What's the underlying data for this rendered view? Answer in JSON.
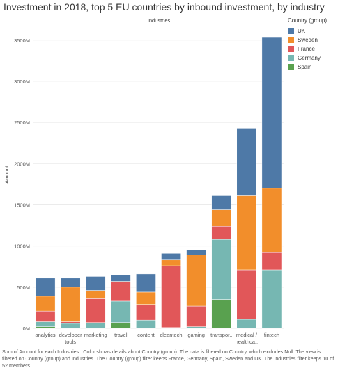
{
  "chart_data": {
    "type": "bar",
    "stacked": true,
    "title": "Investment in 2018, top 5 EU countries by inbound investment, by industry",
    "column_header": "Industries",
    "ylabel": "Amount",
    "ylim": [
      0,
      3650
    ],
    "yticks": [
      0,
      500,
      1000,
      1500,
      2000,
      2500,
      3000,
      3500
    ],
    "ytick_labels": [
      "0M",
      "500M",
      "1000M",
      "1500M",
      "2000M",
      "2500M",
      "3000M",
      "3500M"
    ],
    "grid": true,
    "legend_title": "Country (group)",
    "legend_position": "top-right",
    "categories": [
      "analytics",
      "developer tools",
      "marketing",
      "travel",
      "content",
      "cleantech",
      "gaming",
      "transpor..",
      "medical / healthca..",
      "fintech"
    ],
    "category_lines": [
      [
        "analytics"
      ],
      [
        "developer",
        "tools"
      ],
      [
        "marketing"
      ],
      [
        "travel"
      ],
      [
        "content"
      ],
      [
        "cleantech"
      ],
      [
        "gaming"
      ],
      [
        "transpor.."
      ],
      [
        "medical /",
        "healthca.."
      ],
      [
        "fintech"
      ]
    ],
    "series": [
      {
        "name": "Spain",
        "color": "#59a14f",
        "values": [
          20,
          0,
          0,
          70,
          0,
          0,
          0,
          350,
          0,
          0
        ]
      },
      {
        "name": "Germany",
        "color": "#76b7b2",
        "values": [
          60,
          60,
          70,
          260,
          100,
          10,
          20,
          730,
          110,
          710
        ]
      },
      {
        "name": "France",
        "color": "#e15759",
        "values": [
          130,
          20,
          290,
          230,
          190,
          750,
          250,
          160,
          600,
          210
        ]
      },
      {
        "name": "Sweden",
        "color": "#f28e2b",
        "values": [
          180,
          420,
          100,
          10,
          150,
          70,
          620,
          200,
          900,
          780
        ]
      },
      {
        "name": "UK",
        "color": "#4e79a7",
        "values": [
          220,
          110,
          170,
          80,
          220,
          80,
          60,
          170,
          820,
          1840
        ]
      }
    ],
    "legend_order": [
      "UK",
      "Sweden",
      "France",
      "Germany",
      "Spain"
    ]
  },
  "footer": "Sum of Amount for each Industries . Color shows details about Country (group). The data is filtered on Country, which excludes Null. The view is filtered on Country (group) and Industries. The Country (group) filter keeps France, Germany, Spain, Sweden and UK. The Industries filter keeps 10 of 52 members."
}
